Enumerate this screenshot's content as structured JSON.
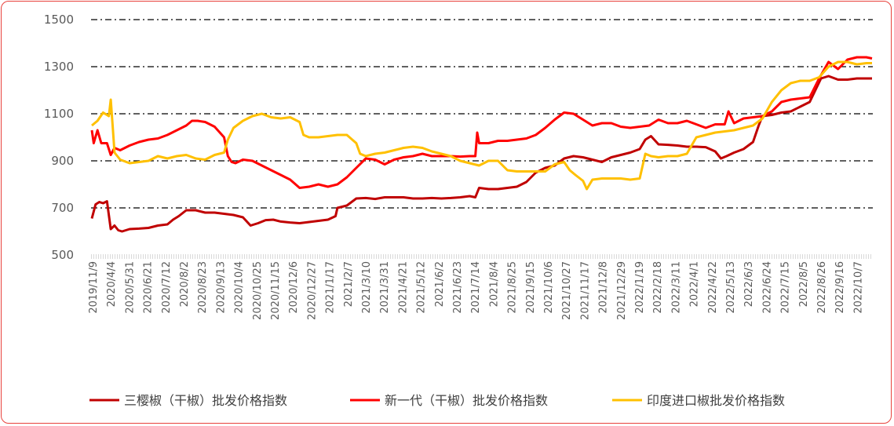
{
  "chart_data": {
    "type": "line",
    "title": "",
    "xlabel": "",
    "ylabel": "",
    "ylim": [
      500,
      1500
    ],
    "y_ticks": [
      500,
      700,
      900,
      1100,
      1300,
      1500
    ],
    "x_tick_labels": [
      "2019/11/9",
      "2020/4/4",
      "2020/5/31",
      "2020/6/21",
      "2020/7/12",
      "2020/8/2",
      "2020/8/23",
      "2020/9/13",
      "2020/10/4",
      "2020/10/25",
      "2020/11/15",
      "2020/12/6",
      "2020/12/27",
      "2021/1/17",
      "2021/2/7",
      "2021/3/10",
      "2021/3/31",
      "2021/4/21",
      "2021/5/12",
      "2021/6/2",
      "2021/6/23",
      "2021/7/14",
      "2021/8/4",
      "2021/8/25",
      "2021/9/15",
      "2021/10/6",
      "2021/10/27",
      "2021/11/17",
      "2021/12/8",
      "2021/12/29",
      "2022/1/19",
      "2022/2/18",
      "2022/3/11",
      "2022/4/1",
      "2022/4/22",
      "2022/5/13",
      "2022/6/3",
      "2022/6/24",
      "2022/7/15",
      "2022/8/5",
      "2022/8/26",
      "2022/9/16",
      "2022/10/7"
    ],
    "grid": "horizontal dash-dot",
    "legend_position": "bottom",
    "series": [
      {
        "name": "三樱椒（干椒）批发价格指数",
        "color": "#c00000",
        "points": [
          [
            0,
            655
          ],
          [
            0.2,
            715
          ],
          [
            0.4,
            725
          ],
          [
            0.6,
            720
          ],
          [
            0.8,
            728
          ],
          [
            1.0,
            610
          ],
          [
            1.2,
            625
          ],
          [
            1.4,
            605
          ],
          [
            1.6,
            600
          ],
          [
            2,
            610
          ],
          [
            2.5,
            612
          ],
          [
            3,
            615
          ],
          [
            3.5,
            625
          ],
          [
            4,
            630
          ],
          [
            4.3,
            650
          ],
          [
            4.6,
            665
          ],
          [
            5,
            690
          ],
          [
            5.5,
            690
          ],
          [
            6,
            680
          ],
          [
            6.5,
            680
          ],
          [
            7,
            675
          ],
          [
            7.5,
            670
          ],
          [
            8,
            660
          ],
          [
            8.4,
            625
          ],
          [
            8.8,
            635
          ],
          [
            9.2,
            648
          ],
          [
            9.6,
            650
          ],
          [
            10,
            642
          ],
          [
            10.5,
            638
          ],
          [
            11,
            635
          ],
          [
            11.5,
            640
          ],
          [
            12,
            645
          ],
          [
            12.5,
            650
          ],
          [
            12.9,
            665
          ],
          [
            13,
            700
          ],
          [
            13.5,
            710
          ],
          [
            14,
            740
          ],
          [
            14.5,
            742
          ],
          [
            15,
            738
          ],
          [
            15.5,
            745
          ],
          [
            16,
            745
          ],
          [
            16.5,
            745
          ],
          [
            17,
            740
          ],
          [
            17.5,
            740
          ],
          [
            18,
            742
          ],
          [
            18.5,
            740
          ],
          [
            19,
            742
          ],
          [
            19.5,
            745
          ],
          [
            20,
            750
          ],
          [
            20.3,
            745
          ],
          [
            20.5,
            785
          ],
          [
            21,
            780
          ],
          [
            21.5,
            780
          ],
          [
            22,
            785
          ],
          [
            22.5,
            790
          ],
          [
            23,
            810
          ],
          [
            23.5,
            850
          ],
          [
            24,
            870
          ],
          [
            24.5,
            880
          ],
          [
            25,
            910
          ],
          [
            25.5,
            920
          ],
          [
            26,
            915
          ],
          [
            26.5,
            905
          ],
          [
            27,
            895
          ],
          [
            27.5,
            915
          ],
          [
            28,
            925
          ],
          [
            28.5,
            935
          ],
          [
            29,
            950
          ],
          [
            29.3,
            990
          ],
          [
            29.6,
            1005
          ],
          [
            30,
            970
          ],
          [
            30.5,
            968
          ],
          [
            31,
            965
          ],
          [
            31.5,
            960
          ],
          [
            32,
            960
          ],
          [
            32.5,
            958
          ],
          [
            33,
            940
          ],
          [
            33.3,
            910
          ],
          [
            33.6,
            920
          ],
          [
            34,
            935
          ],
          [
            34.5,
            950
          ],
          [
            35,
            980
          ],
          [
            35.3,
            1050
          ],
          [
            35.5,
            1090
          ],
          [
            36,
            1095
          ],
          [
            36.5,
            1105
          ],
          [
            37,
            1110
          ],
          [
            37.5,
            1130
          ],
          [
            38,
            1150
          ],
          [
            38.3,
            1200
          ],
          [
            38.6,
            1250
          ],
          [
            39,
            1260
          ],
          [
            39.5,
            1245
          ],
          [
            40,
            1245
          ],
          [
            40.5,
            1250
          ],
          [
            41,
            1250
          ],
          [
            41.3,
            1250
          ]
        ]
      },
      {
        "name": "新一代（干椒）批发价格指数",
        "color": "#ff0000",
        "points": [
          [
            0,
            1030
          ],
          [
            0.1,
            975
          ],
          [
            0.3,
            1030
          ],
          [
            0.5,
            975
          ],
          [
            0.8,
            975
          ],
          [
            1.0,
            925
          ],
          [
            1.2,
            955
          ],
          [
            1.5,
            945
          ],
          [
            2,
            965
          ],
          [
            2.5,
            980
          ],
          [
            3,
            990
          ],
          [
            3.5,
            995
          ],
          [
            4,
            1010
          ],
          [
            4.5,
            1030
          ],
          [
            5,
            1050
          ],
          [
            5.3,
            1070
          ],
          [
            5.6,
            1070
          ],
          [
            6,
            1065
          ],
          [
            6.5,
            1045
          ],
          [
            7,
            1000
          ],
          [
            7.2,
            920
          ],
          [
            7.4,
            895
          ],
          [
            7.6,
            890
          ],
          [
            8,
            905
          ],
          [
            8.5,
            900
          ],
          [
            9,
            880
          ],
          [
            9.5,
            860
          ],
          [
            10,
            840
          ],
          [
            10.5,
            820
          ],
          [
            11,
            785
          ],
          [
            11.5,
            790
          ],
          [
            12,
            800
          ],
          [
            12.5,
            790
          ],
          [
            13,
            800
          ],
          [
            13.5,
            830
          ],
          [
            14,
            870
          ],
          [
            14.5,
            910
          ],
          [
            15,
            905
          ],
          [
            15.5,
            885
          ],
          [
            16,
            905
          ],
          [
            16.5,
            915
          ],
          [
            17,
            920
          ],
          [
            17.5,
            930
          ],
          [
            18,
            920
          ],
          [
            18.5,
            920
          ],
          [
            19,
            920
          ],
          [
            19.5,
            918
          ],
          [
            20,
            920
          ],
          [
            20.3,
            920
          ],
          [
            20.4,
            1020
          ],
          [
            20.5,
            975
          ],
          [
            21,
            975
          ],
          [
            21.5,
            985
          ],
          [
            22,
            985
          ],
          [
            22.5,
            990
          ],
          [
            23,
            995
          ],
          [
            23.5,
            1010
          ],
          [
            24,
            1040
          ],
          [
            24.5,
            1075
          ],
          [
            25,
            1105
          ],
          [
            25.5,
            1100
          ],
          [
            26,
            1075
          ],
          [
            26.5,
            1050
          ],
          [
            27,
            1060
          ],
          [
            27.5,
            1060
          ],
          [
            28,
            1045
          ],
          [
            28.5,
            1040
          ],
          [
            29,
            1045
          ],
          [
            29.5,
            1050
          ],
          [
            30,
            1075
          ],
          [
            30.5,
            1060
          ],
          [
            31,
            1060
          ],
          [
            31.5,
            1070
          ],
          [
            32,
            1055
          ],
          [
            32.5,
            1040
          ],
          [
            33,
            1055
          ],
          [
            33.5,
            1055
          ],
          [
            33.7,
            1110
          ],
          [
            34,
            1060
          ],
          [
            34.5,
            1080
          ],
          [
            35,
            1085
          ],
          [
            35.5,
            1090
          ],
          [
            36,
            1110
          ],
          [
            36.5,
            1150
          ],
          [
            37,
            1160
          ],
          [
            37.5,
            1165
          ],
          [
            38,
            1170
          ],
          [
            38.5,
            1250
          ],
          [
            39,
            1320
          ],
          [
            39.5,
            1290
          ],
          [
            40,
            1330
          ],
          [
            40.5,
            1340
          ],
          [
            41,
            1340
          ],
          [
            41.3,
            1335
          ]
        ]
      },
      {
        "name": "印度进口椒批发价格指数",
        "color": "#ffc000",
        "points": [
          [
            0,
            1050
          ],
          [
            0.3,
            1070
          ],
          [
            0.6,
            1105
          ],
          [
            0.9,
            1090
          ],
          [
            1.0,
            1160
          ],
          [
            1.1,
            1050
          ],
          [
            1.2,
            935
          ],
          [
            1.5,
            905
          ],
          [
            2,
            890
          ],
          [
            2.5,
            895
          ],
          [
            3,
            900
          ],
          [
            3.5,
            920
          ],
          [
            4,
            910
          ],
          [
            4.5,
            920
          ],
          [
            5,
            925
          ],
          [
            5.5,
            910
          ],
          [
            6,
            905
          ],
          [
            6.5,
            925
          ],
          [
            7,
            935
          ],
          [
            7.2,
            990
          ],
          [
            7.5,
            1040
          ],
          [
            8,
            1070
          ],
          [
            8.5,
            1090
          ],
          [
            9,
            1100
          ],
          [
            9.5,
            1085
          ],
          [
            10,
            1080
          ],
          [
            10.5,
            1085
          ],
          [
            11,
            1065
          ],
          [
            11.2,
            1010
          ],
          [
            11.5,
            1000
          ],
          [
            12,
            1000
          ],
          [
            12.5,
            1005
          ],
          [
            13,
            1010
          ],
          [
            13.5,
            1010
          ],
          [
            14,
            975
          ],
          [
            14.2,
            930
          ],
          [
            14.5,
            920
          ],
          [
            15,
            930
          ],
          [
            15.5,
            935
          ],
          [
            16,
            945
          ],
          [
            16.5,
            955
          ],
          [
            17,
            960
          ],
          [
            17.5,
            955
          ],
          [
            18,
            940
          ],
          [
            18.5,
            930
          ],
          [
            19,
            920
          ],
          [
            19.5,
            900
          ],
          [
            20,
            890
          ],
          [
            20.5,
            880
          ],
          [
            21,
            900
          ],
          [
            21.5,
            900
          ],
          [
            22,
            860
          ],
          [
            22.5,
            855
          ],
          [
            23,
            855
          ],
          [
            23.5,
            855
          ],
          [
            24,
            855
          ],
          [
            24.5,
            885
          ],
          [
            25,
            895
          ],
          [
            25.3,
            860
          ],
          [
            25.6,
            840
          ],
          [
            26,
            815
          ],
          [
            26.2,
            780
          ],
          [
            26.5,
            820
          ],
          [
            27,
            825
          ],
          [
            27.5,
            825
          ],
          [
            28,
            825
          ],
          [
            28.5,
            820
          ],
          [
            29,
            825
          ],
          [
            29.3,
            930
          ],
          [
            29.6,
            920
          ],
          [
            30,
            915
          ],
          [
            30.5,
            920
          ],
          [
            31,
            920
          ],
          [
            31.5,
            930
          ],
          [
            32,
            1000
          ],
          [
            32.5,
            1010
          ],
          [
            33,
            1020
          ],
          [
            33.5,
            1025
          ],
          [
            34,
            1030
          ],
          [
            34.5,
            1040
          ],
          [
            35,
            1050
          ],
          [
            35.5,
            1080
          ],
          [
            36,
            1150
          ],
          [
            36.5,
            1200
          ],
          [
            37,
            1230
          ],
          [
            37.5,
            1240
          ],
          [
            38,
            1240
          ],
          [
            38.5,
            1255
          ],
          [
            39,
            1300
          ],
          [
            39.5,
            1320
          ],
          [
            40,
            1320
          ],
          [
            40.5,
            1310
          ],
          [
            41,
            1315
          ],
          [
            41.3,
            1315
          ]
        ]
      }
    ]
  }
}
